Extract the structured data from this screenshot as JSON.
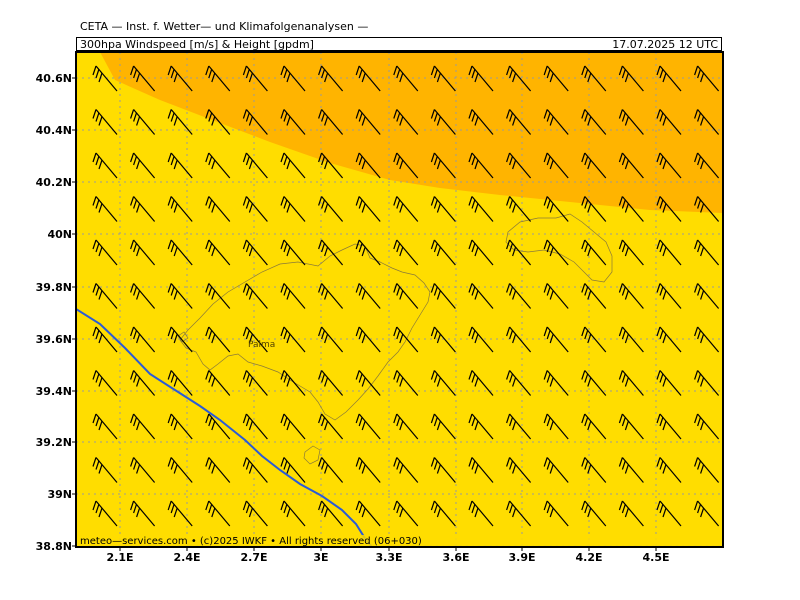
{
  "header": {
    "title": "CETA — Inst. f. Wetter— und Klimafolgenanalysen —",
    "product": "300hpa Windspeed [m/s] & Height [gpdm]",
    "valid_time": "17.07.2025 12 UTC"
  },
  "map": {
    "lat_labels": [
      "40.6N",
      "40.4N",
      "40.2N",
      "40N",
      "39.8N",
      "39.6N",
      "39.4N",
      "39.2N",
      "39N",
      "38.8N"
    ],
    "lon_labels": [
      "2.1E",
      "2.4E",
      "2.7E",
      "3E",
      "3.3E",
      "3.6E",
      "3.9E",
      "4.2E",
      "4.5E"
    ],
    "place_label": "Palma",
    "credit": "meteo—services.com • (c)2025 IWKF • All rights reserved (06+030)",
    "colors": {
      "windspeed_low": "#ffdd00",
      "windspeed_high": "#ffb400",
      "height_contour": "#2a5bd7",
      "gridline": "#9a9a9a",
      "coastline": "#8a7a3a",
      "barb": "#000000"
    },
    "barb_icon": "wind-barb-icon"
  }
}
